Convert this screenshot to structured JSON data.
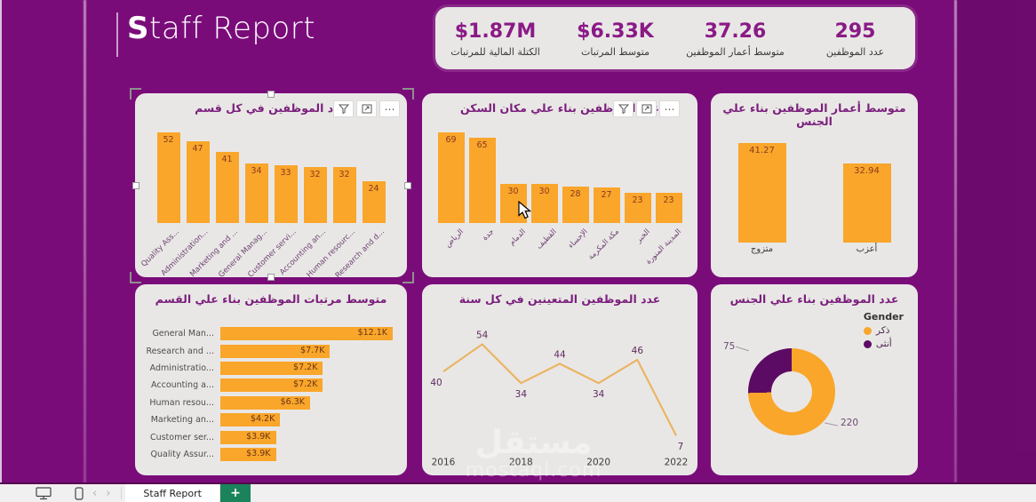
{
  "theme": {
    "background": "#7A0C7A",
    "card_bg": "#E9E7E6",
    "accent_orange": "#F9A62B",
    "accent_purple": "#7A1F7C",
    "donut_purple": "#5B0B63",
    "line_color": "#E9B564"
  },
  "header": {
    "title_bold": "S",
    "title_rest": "taff Report"
  },
  "kpis": [
    {
      "value": "$1.87M",
      "label": "الكتلة المالية للمرتبات"
    },
    {
      "value": "$6.33K",
      "label": "متوسط المرتبات"
    },
    {
      "value": "37.26",
      "label": "متوسط أعمار الموظفين"
    },
    {
      "value": "295",
      "label": "عدد الموظفين"
    }
  ],
  "panel_menu": {
    "filter_icon": "funnel",
    "focus_icon": "focus-mode",
    "more_label": "⋯"
  },
  "chart_data": [
    {
      "type": "bar",
      "title": "عدد الموظفين في كل قسم",
      "categories": [
        "Quality Ass...",
        "Administration...",
        "Marketing and ...",
        "General Manag...",
        "Customer servi...",
        "Accounting an...",
        "Human resourc...",
        "Research and d..."
      ],
      "values": [
        52,
        47,
        41,
        34,
        33,
        32,
        32,
        24
      ],
      "bar_color": "#F9A62B",
      "ylim": [
        0,
        52
      ],
      "grid": false,
      "legend": false
    },
    {
      "type": "bar",
      "title": "عدد الموظفين بناء علي مكان السكن",
      "categories": [
        "الرياض",
        "جدة",
        "الدمام",
        "القطيف",
        "الإحساء",
        "مكة المكرمة",
        "الخبر",
        "المدينة المنورة"
      ],
      "values": [
        69,
        65,
        30,
        30,
        28,
        27,
        23,
        23
      ],
      "bar_color": "#F9A62B",
      "ylim": [
        0,
        69
      ],
      "grid": false,
      "legend": false
    },
    {
      "type": "bar",
      "title": "متوسط أعمار الموظفين بناء علي الجنس",
      "categories": [
        "متزوج",
        "أعزب"
      ],
      "values": [
        41.27,
        32.94
      ],
      "value_labels": [
        "41.27",
        "32.94"
      ],
      "bar_color": "#F9A62B",
      "ylim": [
        0,
        41.27
      ],
      "grid": false,
      "legend": false
    },
    {
      "type": "horizontal-bar",
      "title": "متوسط مرتبات الموظفين بناء علي القسم",
      "categories": [
        "General Man...",
        "Research and ...",
        "Administratio...",
        "Accounting a...",
        "Human resou...",
        "Marketing an...",
        "Customer ser...",
        "Quality Assur..."
      ],
      "values": [
        12.1,
        7.7,
        7.2,
        7.2,
        6.3,
        4.2,
        3.9,
        3.9
      ],
      "value_labels": [
        "$12.1K",
        "$7.7K",
        "$7.2K",
        "$7.2K",
        "$6.3K",
        "$4.2K",
        "$3.9K",
        "$3.9K"
      ],
      "bar_color": "#F9A62B",
      "xlim": [
        0,
        12.1
      ],
      "grid": false,
      "legend": false
    },
    {
      "type": "line",
      "title": "عدد الموظفين المتعينين في كل سنة",
      "x": [
        2016,
        2017,
        2018,
        2019,
        2020,
        2021,
        2022
      ],
      "values": [
        40,
        54,
        34,
        44,
        34,
        46,
        7
      ],
      "x_ticks": [
        "2016",
        "2018",
        "2020",
        "2022"
      ],
      "line_color": "#E9B564",
      "ylim": [
        0,
        60
      ],
      "grid": false,
      "legend": false
    },
    {
      "type": "pie",
      "title": "عدد الموظفين بناء علي الجنس",
      "legend_title": "Gender",
      "legend": [
        {
          "label": "ذكر",
          "color": "#F9A62B"
        },
        {
          "label": "أنثى",
          "color": "#5B0B63"
        }
      ],
      "values": [
        220,
        75
      ],
      "labels": [
        "220",
        "75"
      ],
      "legend_position": "top-right"
    }
  ],
  "footer": {
    "tab": "Staff Report",
    "add_label": "+",
    "prev": "‹",
    "next": "›"
  },
  "watermark": {
    "line1": "مستقل",
    "line2": "mostaql.com"
  }
}
